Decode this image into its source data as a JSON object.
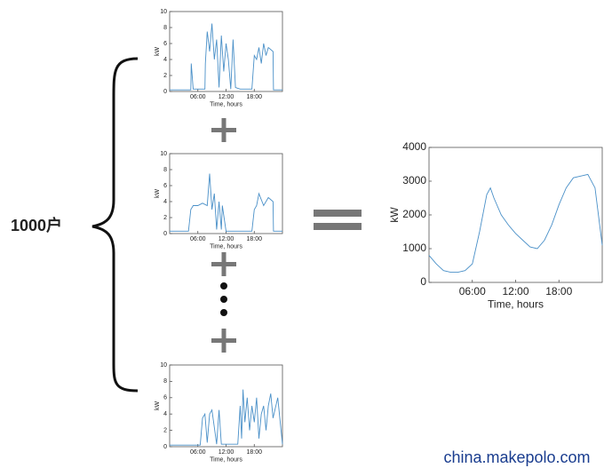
{
  "label": "1000户",
  "watermark": "china.makepolo.com",
  "chart_data": [
    {
      "type": "line",
      "xlabel": "Time, hours",
      "ylabel": "kW",
      "color": "#4a90c8",
      "xlim": [
        0,
        24
      ],
      "ylim": [
        0,
        10
      ],
      "yticks": [
        0,
        2,
        4,
        6,
        8,
        10
      ],
      "xticks": [
        {
          "value": 6,
          "label": "06:00"
        },
        {
          "value": 12,
          "label": "12:00"
        },
        {
          "value": 18,
          "label": "18:00"
        }
      ],
      "x": [
        0,
        3,
        4.5,
        4.6,
        5,
        7.5,
        7.6,
        8,
        8.5,
        9,
        9.5,
        10,
        10.5,
        11,
        11.5,
        12,
        12.5,
        13,
        13.5,
        14,
        15,
        17.5,
        18,
        18.5,
        19,
        19.5,
        20,
        20.5,
        21,
        22,
        22.1,
        24
      ],
      "values": [
        0.2,
        0.2,
        0.2,
        3.5,
        0.3,
        0.3,
        3.5,
        7.5,
        5,
        8.5,
        4,
        6.5,
        0.5,
        7,
        2.5,
        6,
        4,
        0.3,
        6.5,
        0.5,
        0.3,
        0.3,
        4.5,
        4,
        5.5,
        3.5,
        6,
        4.5,
        5.5,
        5,
        0.2,
        0.2
      ]
    },
    {
      "type": "line",
      "xlabel": "Time, hours",
      "ylabel": "kW",
      "color": "#4a90c8",
      "xlim": [
        0,
        24
      ],
      "ylim": [
        0,
        10
      ],
      "yticks": [
        0,
        2,
        4,
        6,
        8,
        10
      ],
      "xticks": [
        {
          "value": 6,
          "label": "06:00"
        },
        {
          "value": 12,
          "label": "12:00"
        },
        {
          "value": 18,
          "label": "18:00"
        }
      ],
      "x": [
        0,
        4,
        4.5,
        5,
        6,
        7,
        8,
        8.5,
        9,
        9.5,
        10,
        10.5,
        11,
        11.2,
        12,
        13,
        17.5,
        18,
        18.5,
        19,
        20,
        21,
        22,
        22.1,
        24
      ],
      "values": [
        0.3,
        0.3,
        3,
        3.5,
        3.5,
        3.8,
        3.5,
        7.5,
        3,
        5,
        0.5,
        4,
        0.5,
        3.5,
        0.3,
        0.3,
        0.3,
        3,
        3.5,
        5,
        3.5,
        4.5,
        4,
        0.3,
        0.3
      ]
    },
    {
      "type": "line",
      "xlabel": "Time, hours",
      "ylabel": "kW",
      "color": "#4a90c8",
      "xlim": [
        0,
        24
      ],
      "ylim": [
        0,
        10
      ],
      "yticks": [
        0,
        2,
        4,
        6,
        8,
        10
      ],
      "xticks": [
        {
          "value": 6,
          "label": "06:00"
        },
        {
          "value": 12,
          "label": "12:00"
        },
        {
          "value": 18,
          "label": "18:00"
        }
      ],
      "x": [
        0,
        6.5,
        7,
        7.5,
        8,
        8.5,
        9,
        10,
        10.5,
        11,
        14.5,
        15,
        15.3,
        15.6,
        16,
        16.5,
        17,
        17.5,
        18,
        18.5,
        19,
        19.5,
        20,
        20.5,
        21,
        21.5,
        22,
        23,
        24
      ],
      "values": [
        0.2,
        0.2,
        3.5,
        4,
        0.5,
        4,
        4.5,
        0.3,
        4.5,
        0.3,
        0.3,
        5,
        1,
        7,
        3,
        6,
        2,
        5,
        3,
        6,
        1,
        4,
        5,
        2,
        5,
        6.5,
        3.5,
        6,
        0.3
      ]
    },
    {
      "type": "line",
      "xlabel": "Time, hours",
      "ylabel": "kW",
      "color": "#4a90c8",
      "xlim": [
        0,
        24
      ],
      "ylim": [
        0,
        4000
      ],
      "yticks": [
        0,
        1000,
        2000,
        3000,
        4000
      ],
      "xticks": [
        {
          "value": 6,
          "label": "06:00"
        },
        {
          "value": 12,
          "label": "12:00"
        },
        {
          "value": 18,
          "label": "18:00"
        }
      ],
      "x": [
        0,
        1,
        2,
        3,
        4,
        5,
        6,
        7,
        8,
        8.5,
        9,
        10,
        11,
        12,
        13,
        14,
        15,
        16,
        17,
        18,
        19,
        20,
        21,
        22,
        23,
        24
      ],
      "values": [
        800,
        550,
        350,
        300,
        300,
        350,
        550,
        1500,
        2600,
        2800,
        2500,
        2000,
        1700,
        1450,
        1250,
        1050,
        1000,
        1250,
        1700,
        2300,
        2800,
        3100,
        3150,
        3200,
        2800,
        1100
      ]
    }
  ]
}
